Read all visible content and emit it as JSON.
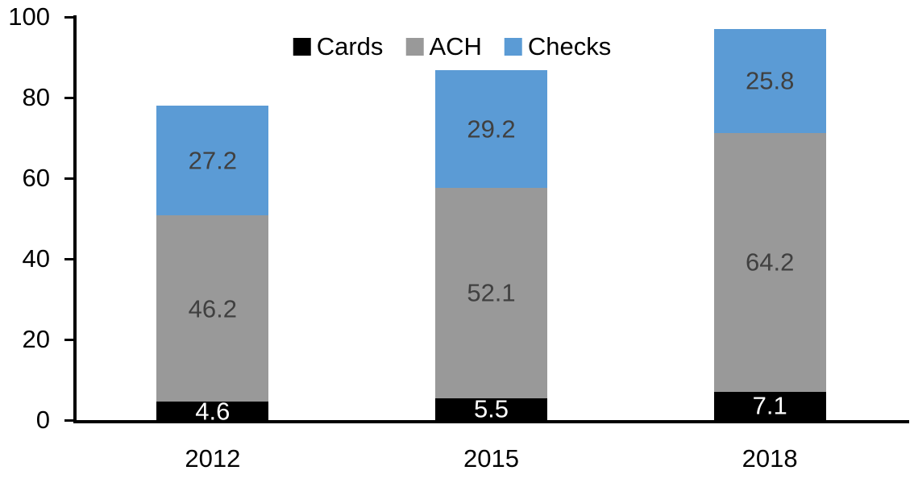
{
  "chart_data": {
    "type": "bar",
    "stacked": true,
    "title": "",
    "xlabel": "",
    "ylabel": "",
    "categories": [
      "2012",
      "2015",
      "2018"
    ],
    "series": [
      {
        "name": "Cards",
        "values": [
          4.6,
          5.5,
          7.1
        ],
        "color": "#000000",
        "label_color": "#ffffff"
      },
      {
        "name": "ACH",
        "values": [
          46.2,
          52.1,
          64.2
        ],
        "color": "#999999",
        "label_color": "#404040"
      },
      {
        "name": "Checks",
        "values": [
          27.2,
          29.2,
          25.8
        ],
        "color": "#5b9bd5",
        "label_color": "#404040"
      }
    ],
    "totals": [
      78.0,
      86.8,
      97.1
    ],
    "ylim": [
      0,
      100
    ],
    "y_ticks": [
      0,
      20,
      40,
      60,
      80,
      100
    ],
    "grid": false,
    "data_labels": true,
    "legend_position": "top-center"
  },
  "colors": {
    "background": "#ffffff",
    "axis": "#000000",
    "tick_label": "#000000",
    "cards": "#000000",
    "ach": "#999999",
    "checks": "#5b9bd5",
    "segment_label_dark": "#404040",
    "segment_label_light": "#ffffff"
  }
}
